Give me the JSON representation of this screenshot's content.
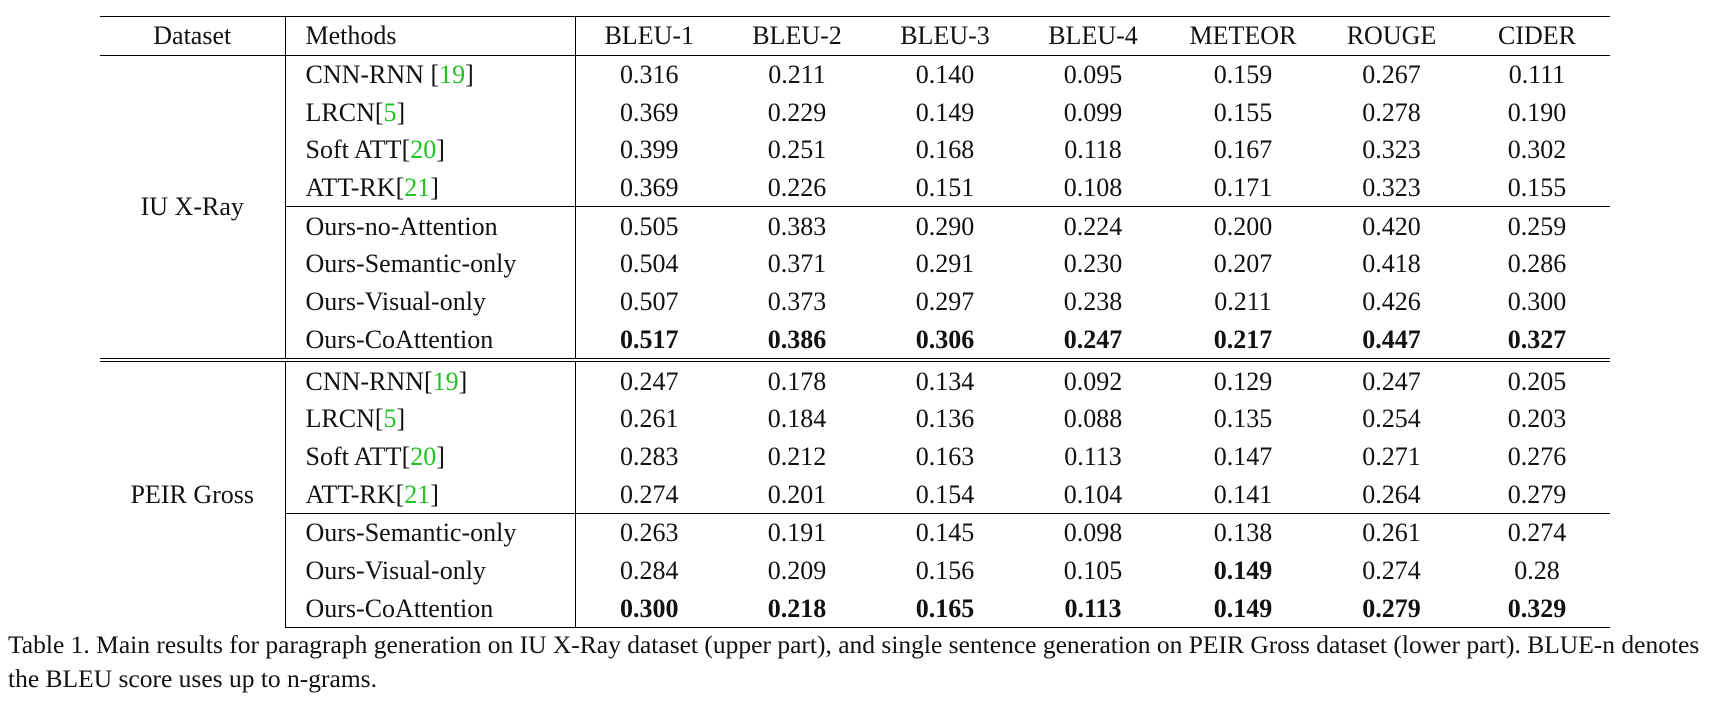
{
  "columns": [
    "Dataset",
    "Methods",
    "BLEU-1",
    "BLEU-2",
    "BLEU-3",
    "BLEU-4",
    "METEOR",
    "ROUGE",
    "CIDER"
  ],
  "groups": [
    {
      "dataset": "IU X-Ray",
      "subgroups": [
        [
          {
            "method": "CNN-RNN ",
            "cite": "19",
            "close": "]",
            "values": [
              "0.316",
              "0.211",
              "0.140",
              "0.095",
              "0.159",
              "0.267",
              "0.111"
            ],
            "bold": []
          },
          {
            "method": "LRCN",
            "cite": "5",
            "close": "]",
            "values": [
              "0.369",
              "0.229",
              "0.149",
              "0.099",
              "0.155",
              "0.278",
              "0.190"
            ],
            "bold": []
          },
          {
            "method": "Soft ATT",
            "cite": "20",
            "close": "]",
            "values": [
              "0.399",
              "0.251",
              "0.168",
              "0.118",
              "0.167",
              "0.323",
              "0.302"
            ],
            "bold": []
          },
          {
            "method": "ATT-RK",
            "cite": "21",
            "close": "]",
            "values": [
              "0.369",
              "0.226",
              "0.151",
              "0.108",
              "0.171",
              "0.323",
              "0.155"
            ],
            "bold": []
          }
        ],
        [
          {
            "method": "Ours-no-Attention",
            "values": [
              "0.505",
              "0.383",
              "0.290",
              "0.224",
              "0.200",
              "0.420",
              "0.259"
            ],
            "bold": []
          },
          {
            "method": "Ours-Semantic-only",
            "values": [
              "0.504",
              "0.371",
              "0.291",
              "0.230",
              "0.207",
              "0.418",
              "0.286"
            ],
            "bold": []
          },
          {
            "method": "Ours-Visual-only",
            "values": [
              "0.507",
              "0.373",
              "0.297",
              "0.238",
              "0.211",
              "0.426",
              "0.300"
            ],
            "bold": []
          },
          {
            "method": "Ours-CoAttention",
            "values": [
              "0.517",
              "0.386",
              "0.306",
              "0.247",
              "0.217",
              "0.447",
              "0.327"
            ],
            "bold": [
              0,
              1,
              2,
              3,
              4,
              5,
              6
            ]
          }
        ]
      ]
    },
    {
      "dataset": "PEIR Gross",
      "subgroups": [
        [
          {
            "method": "CNN-RNN",
            "cite": "19",
            "close": "]",
            "values": [
              "0.247",
              "0.178",
              "0.134",
              "0.092",
              "0.129",
              "0.247",
              "0.205"
            ],
            "bold": []
          },
          {
            "method": "LRCN",
            "cite": "5",
            "close": "]",
            "values": [
              "0.261",
              "0.184",
              "0.136",
              "0.088",
              "0.135",
              "0.254",
              "0.203"
            ],
            "bold": []
          },
          {
            "method": "Soft ATT",
            "cite": "20",
            "close": "]",
            "values": [
              "0.283",
              "0.212",
              "0.163",
              "0.113",
              "0.147",
              "0.271",
              "0.276"
            ],
            "bold": []
          },
          {
            "method": "ATT-RK",
            "cite": "21",
            "close": "]",
            "values": [
              "0.274",
              "0.201",
              "0.154",
              "0.104",
              "0.141",
              "0.264",
              "0.279"
            ],
            "bold": []
          }
        ],
        [
          {
            "method": "Ours-Semantic-only",
            "values": [
              "0.263",
              "0.191",
              "0.145",
              "0.098",
              "0.138",
              "0.261",
              "0.274"
            ],
            "bold": []
          },
          {
            "method": "Ours-Visual-only",
            "values": [
              "0.284",
              "0.209",
              "0.156",
              "0.105",
              "0.149",
              "0.274",
              "0.28"
            ],
            "bold": [
              4
            ]
          },
          {
            "method": "Ours-CoAttention",
            "values": [
              "0.300",
              "0.218",
              "0.165",
              "0.113",
              "0.149",
              "0.279",
              "0.329"
            ],
            "bold": [
              0,
              1,
              2,
              3,
              4,
              5,
              6
            ]
          }
        ]
      ]
    }
  ],
  "caption": "Table 1. Main results for paragraph generation on IU X-Ray dataset (upper part), and single sentence generation on PEIR Gross dataset (lower part). BLUE-n denotes the BLEU score uses up to n-grams.",
  "colors": {
    "citation": "#22c322",
    "text": "#111111",
    "rule": "#000000"
  }
}
